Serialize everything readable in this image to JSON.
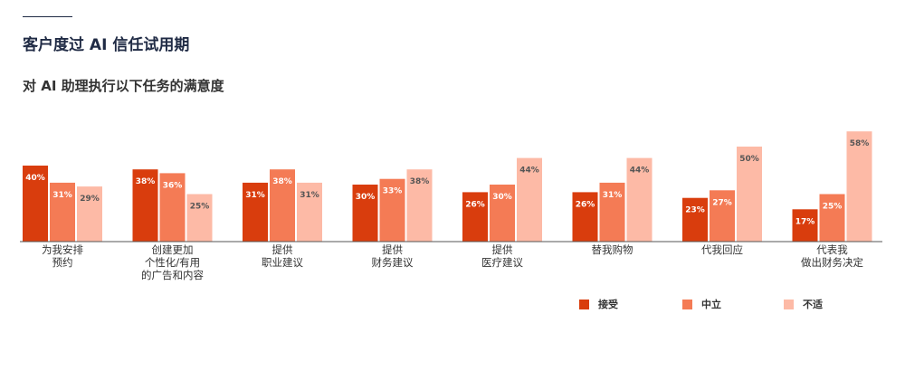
{
  "header": {
    "title": "客户度过 AI 信任试用期",
    "subtitle": "对 AI 助理执行以下任务的满意度"
  },
  "colors": {
    "accept": "#d93d0d",
    "neutral": "#f47b55",
    "uncomfortable": "#fdbaa6",
    "title": "#1f2a44",
    "axis": "#555555"
  },
  "chart_data": {
    "type": "bar",
    "title": "客户度过 AI 信任试用期",
    "subtitle": "对 AI 助理执行以下任务的满意度",
    "xlabel": "",
    "ylabel": "",
    "ylim": [
      0,
      60
    ],
    "grid": false,
    "legend_position": "bottom-right",
    "categories": [
      [
        "为我安排",
        "预约"
      ],
      [
        "创建更加",
        "个性化/有用",
        "的广告和内容"
      ],
      [
        "提供",
        "职业建议"
      ],
      [
        "提供",
        "财务建议"
      ],
      [
        "提供",
        "医疗建议"
      ],
      [
        "替我购物"
      ],
      [
        "代我回应"
      ],
      [
        "代表我",
        "做出财务决定"
      ]
    ],
    "series": [
      {
        "name": "接受",
        "values": [
          40,
          38,
          31,
          30,
          26,
          26,
          23,
          17
        ],
        "labels": [
          "40%",
          "38%",
          "31%",
          "30%",
          "26%",
          "26%",
          "23%",
          "17%"
        ]
      },
      {
        "name": "中立",
        "values": [
          31,
          36,
          38,
          33,
          30,
          31,
          27,
          25
        ],
        "labels": [
          "31%",
          "36%",
          "38%",
          "33%",
          "30%",
          "31%",
          "27%",
          "25%"
        ]
      },
      {
        "name": "不适",
        "values": [
          29,
          25,
          31,
          38,
          44,
          44,
          50,
          58
        ],
        "labels": [
          "29%",
          "25%",
          "31%",
          "38%",
          "44%",
          "44%",
          "50%",
          "58%"
        ]
      }
    ]
  }
}
